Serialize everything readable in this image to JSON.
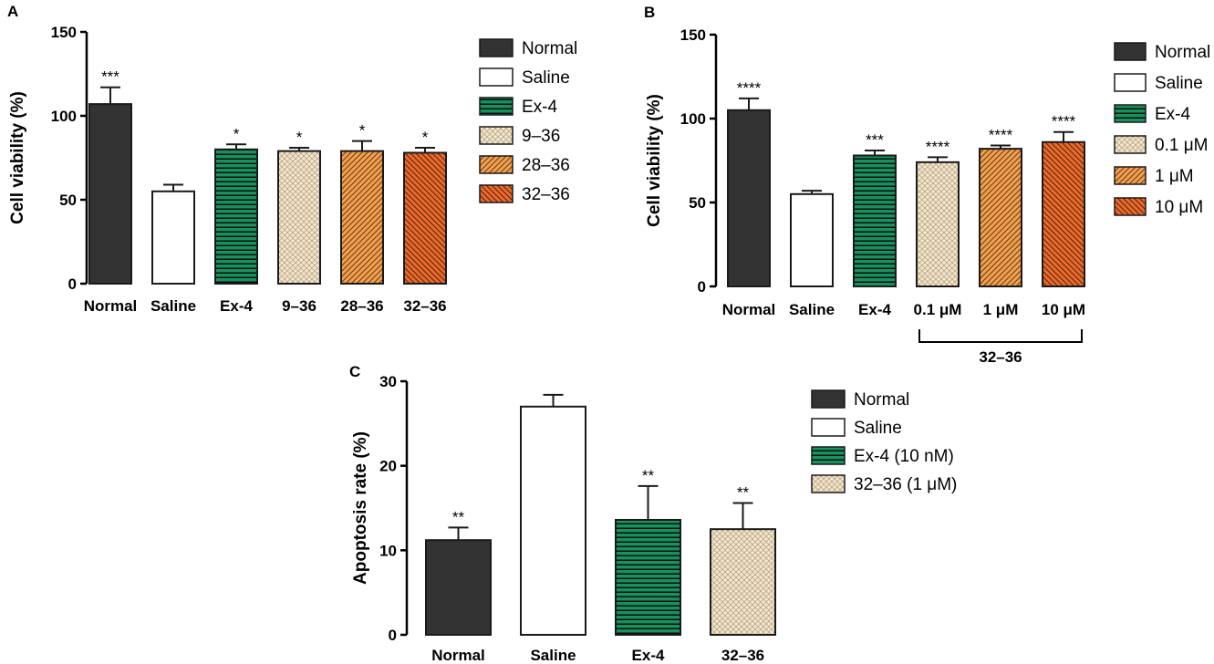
{
  "colors": {
    "normal": "#333333",
    "saline": "#ffffff",
    "ex4": "#17925f",
    "cross": "#f5e4c8",
    "cross_line": "#b5a58a",
    "orange_light": "#f0a04f",
    "orange_dark": "#e86a2c",
    "edge": "#1a1a1a"
  },
  "chart_data": [
    {
      "id": "A",
      "panel_label": "A",
      "type": "bar",
      "ylabel": "Cell viability (%)",
      "ylim": [
        0,
        150
      ],
      "yticks": [
        "0",
        "50",
        "100",
        "150"
      ],
      "categories": [
        "Normal",
        "Saline",
        "Ex-4",
        "9–36",
        "28–36",
        "32–36"
      ],
      "values": [
        107,
        55,
        80,
        79,
        79,
        78
      ],
      "errors": [
        10,
        4,
        3,
        2,
        6,
        3
      ],
      "significance": [
        "***",
        "",
        "*",
        "*",
        "*",
        "*"
      ],
      "legend": [
        "Normal",
        "Saline",
        "Ex-4",
        "9–36",
        "28–36",
        "32–36"
      ],
      "legend_position": "right"
    },
    {
      "id": "B",
      "panel_label": "B",
      "type": "bar",
      "ylabel": "Cell viability (%)",
      "ylim": [
        0,
        150
      ],
      "yticks": [
        "0",
        "50",
        "100",
        "150"
      ],
      "categories": [
        "Normal",
        "Saline",
        "Ex-4",
        "0.1 μM",
        "1 μM",
        "10 μM"
      ],
      "values": [
        105,
        55,
        78,
        74,
        82,
        86
      ],
      "errors": [
        7,
        2,
        3,
        3,
        2,
        6
      ],
      "significance": [
        "****",
        "",
        "***",
        "****",
        "****",
        "****"
      ],
      "legend": [
        "Normal",
        "Saline",
        "Ex-4",
        "0.1 μM",
        "1 μM",
        "10 μM"
      ],
      "legend_position": "right",
      "group_bracket": {
        "label": "32–36",
        "from": 3,
        "to": 5
      }
    },
    {
      "id": "C",
      "panel_label": "C",
      "type": "bar",
      "ylabel": "Apoptosis rate (%)",
      "ylim": [
        0,
        30
      ],
      "yticks": [
        "0",
        "10",
        "20",
        "30"
      ],
      "categories": [
        "Normal",
        "Saline",
        "Ex-4",
        "32–36"
      ],
      "values": [
        11.2,
        27.0,
        13.6,
        12.5
      ],
      "errors": [
        1.5,
        1.4,
        4.0,
        3.1
      ],
      "significance": [
        "**",
        "",
        "**",
        "**"
      ],
      "legend": [
        "Normal",
        "Saline",
        "Ex-4 (10 nM)",
        "32–36 (1 μM)"
      ],
      "legend_position": "right"
    }
  ]
}
